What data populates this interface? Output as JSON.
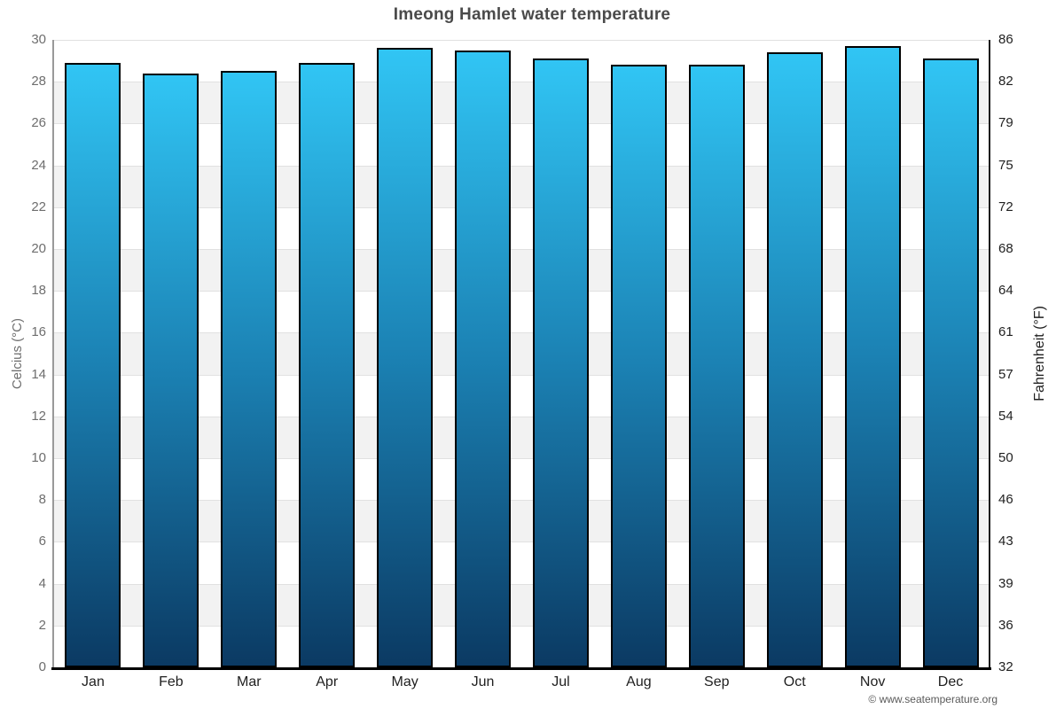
{
  "title": "Imeong Hamlet water temperature",
  "footer": "© www.seatemperature.org",
  "chart_data": {
    "type": "bar",
    "categories": [
      "Jan",
      "Feb",
      "Mar",
      "Apr",
      "May",
      "Jun",
      "Jul",
      "Aug",
      "Sep",
      "Oct",
      "Nov",
      "Dec"
    ],
    "values": [
      28.9,
      28.4,
      28.5,
      28.9,
      29.6,
      29.5,
      29.1,
      28.8,
      28.8,
      29.4,
      29.7,
      29.1
    ],
    "title": "Imeong Hamlet water temperature",
    "xlabel": "",
    "ylabel_left": "Celcius (°C)",
    "ylabel_right": "Fahrenheit (°F)",
    "ylim": [
      0,
      30
    ],
    "ytick_step_celsius": 2,
    "yticks_celsius": [
      0,
      2,
      4,
      6,
      8,
      10,
      12,
      14,
      16,
      18,
      20,
      22,
      24,
      26,
      28,
      30
    ],
    "yticks_fahrenheit": [
      32,
      36,
      39,
      43,
      46,
      50,
      54,
      57,
      61,
      64,
      68,
      72,
      75,
      79,
      82,
      86
    ],
    "grid": true,
    "legend": "none",
    "colors": {
      "bar_top": "#31c5f4",
      "bar_mid": "#1b81b3",
      "bar_bottom": "#0b3a63",
      "bar_border": "#000000",
      "alternate_band": "#f2f2f2",
      "gridline": "#e1e1e1",
      "title_text": "#4a4a4a",
      "celsius_labels": "#6e6e6e",
      "fahrenheit_labels": "#1f1f1f",
      "month_labels": "#1f1f1f",
      "footer_text": "#5a5a5a"
    }
  }
}
